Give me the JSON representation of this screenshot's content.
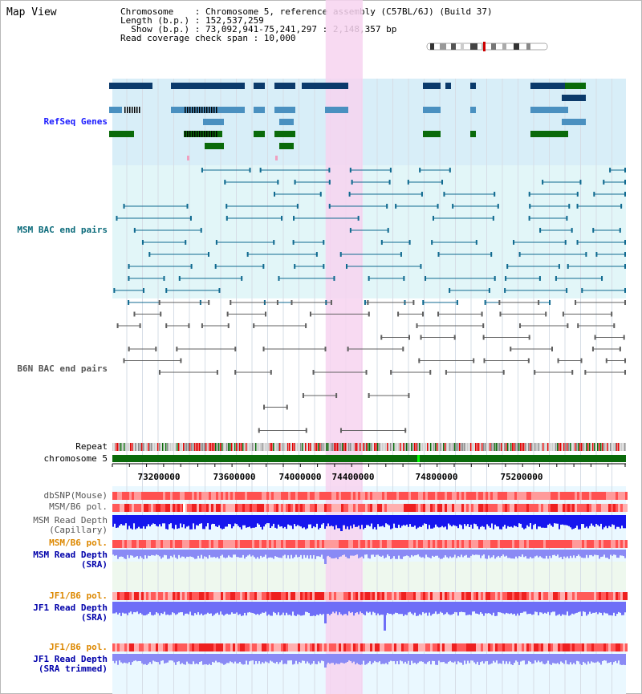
{
  "view_title": "Map View",
  "info": {
    "chromosome": "Chromosome    : Chromosome 5, reference assembly (C57BL/6J) (Build 37)",
    "length": "Length (b.p.) : 152,537,259",
    "show": "  Show (b.p.) : 73,092,941-75,241,297 : 2,148,357 bp",
    "coverage": "Read coverage check span : 10,000"
  },
  "tracks": {
    "refseq": "RefSeq Genes",
    "msm_bac": "MSM BAC end pairs",
    "b6n_bac": "B6N BAC end pairs",
    "repeat": "Repeat",
    "chromosome": "chromosome 5",
    "dbsnp": "dbSNP(Mouse)",
    "msm_b6_pol_1": "MSM/B6 pol.",
    "msm_depth_cap_1": "MSM Read Depth",
    "msm_depth_cap_2": "(Capillary)",
    "msm_b6_pol_2": "MSM/B6 pol.",
    "msm_depth_sra_1": "MSM Read Depth",
    "msm_depth_sra_2": "(SRA)",
    "jf1_b6_pol_1": "JF1/B6 pol.",
    "jf1_depth_sra_1": "JF1 Read Depth",
    "jf1_depth_sra_2": "(SRA)",
    "jf1_b6_pol_2": "JF1/B6 pol.",
    "jf1_depth_trim_1": "JF1 Read Depth",
    "jf1_depth_trim_2": "(SRA trimmed)"
  },
  "axis": {
    "ticks": [
      "73200000",
      "73600000",
      "74000000",
      "74400000",
      "74800000",
      "75200000"
    ],
    "range_bp": [
      73092941,
      75241297
    ]
  },
  "highlight_range_bp": [
    73985000,
    74140000
  ],
  "colors": {
    "gene_navy": "#0b3a6b",
    "gene_light": "#4a90c0",
    "gene_green": "#0a6a0a",
    "refseq_bg": "#d8eef8",
    "msm_bg": "#e2f6f8",
    "highlight": "#f7d4f0",
    "chromosome": "#0a6a0a",
    "depth_blue": "#1a1aff",
    "depth_light": "#8080ff",
    "pol_red": "#ff3030"
  }
}
